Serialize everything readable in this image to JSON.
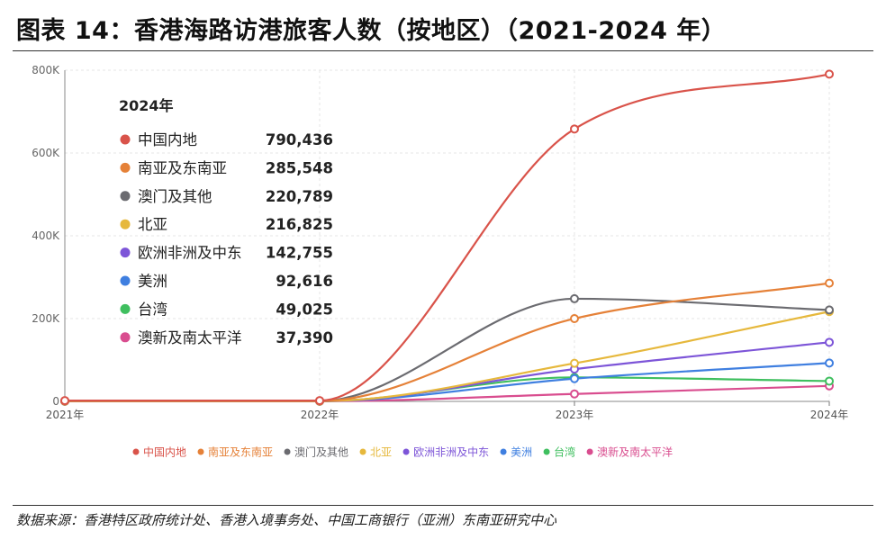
{
  "header": {
    "title": "图表 14：香港海路访港旅客人数（按地区）（2021-2024 年）"
  },
  "footer": {
    "source": "数据来源：香港特区政府统计处、香港入境事务处、中国工商银行（亚洲）东南亚研究中心"
  },
  "chart_data": {
    "type": "line",
    "title": "香港海路访港旅客人数（按地区）（2021-2024 年）",
    "x": [
      "2021年",
      "2022年",
      "2023年",
      "2024年"
    ],
    "ylim": [
      0,
      800000
    ],
    "yticks": [
      0,
      200000,
      400000,
      600000,
      800000
    ],
    "ytick_labels": [
      "0",
      "200K",
      "400K",
      "600K",
      "800K"
    ],
    "legend_position": "bottom",
    "tooltip": {
      "title": "2024年"
    },
    "series": [
      {
        "name": "中国内地",
        "color": "#d9534a",
        "values": [
          2000,
          2000,
          658000,
          790436
        ],
        "label_2024": "790,436"
      },
      {
        "name": "南亚及东南亚",
        "color": "#e58138",
        "values": [
          1000,
          1000,
          200000,
          285548
        ],
        "label_2024": "285,548"
      },
      {
        "name": "澳门及其他",
        "color": "#6b6b70",
        "values": [
          1000,
          1000,
          248000,
          220789
        ],
        "label_2024": "220,789"
      },
      {
        "name": "北亚",
        "color": "#e6b83c",
        "values": [
          500,
          500,
          92000,
          216825
        ],
        "label_2024": "216,825"
      },
      {
        "name": "欧洲非洲及中东",
        "color": "#7d55d8",
        "values": [
          500,
          500,
          78000,
          142755
        ],
        "label_2024": "142,755"
      },
      {
        "name": "美洲",
        "color": "#3f7fe0",
        "values": [
          500,
          500,
          55000,
          92616
        ],
        "label_2024": "92,616"
      },
      {
        "name": "台湾",
        "color": "#3fbf5f",
        "values": [
          500,
          500,
          58000,
          49025
        ],
        "label_2024": "49,025"
      },
      {
        "name": "澳新及南太平洋",
        "color": "#d94d8f",
        "values": [
          500,
          500,
          18000,
          37390
        ],
        "label_2024": "37,390"
      }
    ]
  }
}
